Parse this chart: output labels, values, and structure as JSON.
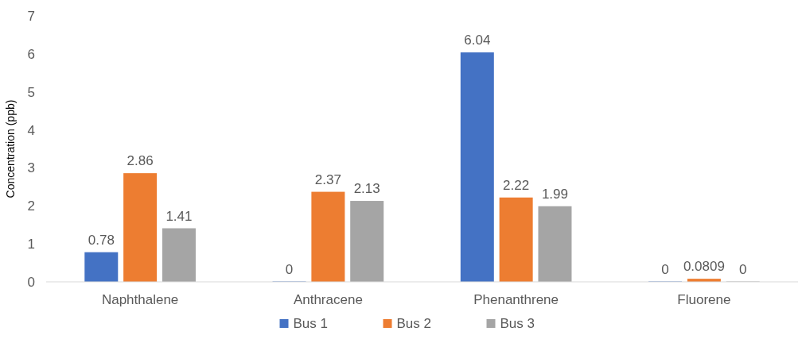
{
  "chart_data": {
    "type": "bar",
    "ylabel": "Concentration (ppb)",
    "categories": [
      "Naphthalene",
      "Anthracene",
      "Phenanthrene",
      "Fluorene"
    ],
    "series": [
      {
        "name": "Bus 1",
        "color": "#4472c4",
        "values": [
          0.78,
          0,
          6.04,
          0
        ]
      },
      {
        "name": "Bus 2",
        "color": "#ed7d31",
        "values": [
          2.86,
          2.37,
          2.22,
          0.0809
        ]
      },
      {
        "name": "Bus 3",
        "color": "#a5a5a5",
        "values": [
          1.41,
          2.13,
          1.99,
          0
        ]
      }
    ],
    "ylim": [
      0,
      7
    ],
    "yticks": [
      0,
      1,
      2,
      3,
      4,
      5,
      6,
      7
    ],
    "data_labels": true,
    "legend": "bottom",
    "grid": false
  }
}
